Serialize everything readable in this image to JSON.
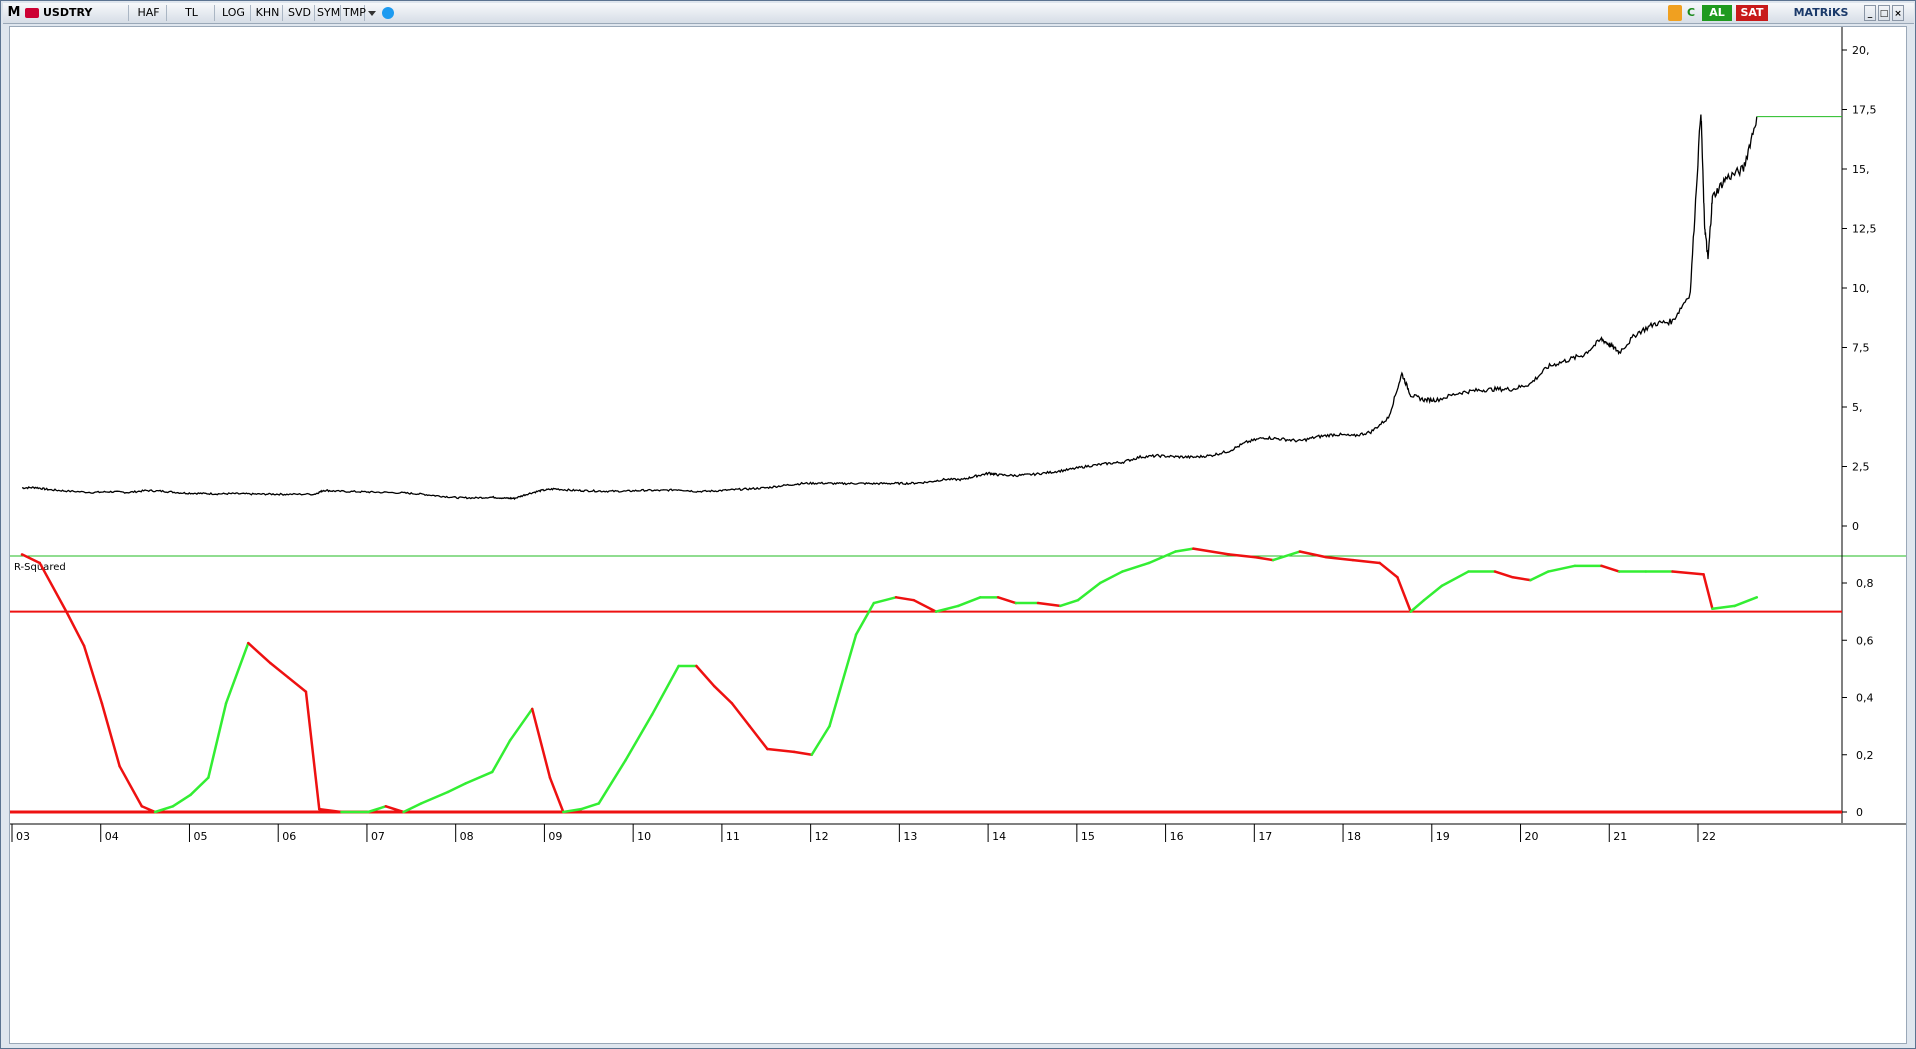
{
  "toolbar": {
    "logo": "M",
    "symbol": "USDTRY",
    "buttons": [
      "HAF",
      "TL",
      "LOG",
      "KHN",
      "SVD",
      "SYM",
      "TMP"
    ],
    "buy_label": "AL",
    "sell_label": "SAT",
    "brand": "MATRiKS"
  },
  "colors": {
    "price_line": "#000000",
    "last_price_marker": "#22bb22",
    "rsq_up": "#33ee33",
    "rsq_down": "#ee1111",
    "threshold": "#ee1111",
    "buy_bg": "#1f9a1f",
    "sell_bg": "#c81a1a"
  },
  "chart_data": [
    {
      "type": "line",
      "series": [
        {
          "values": [
            [
              2003.0,
              1.6
            ],
            [
              2003.15,
              1.62
            ],
            [
              2003.3,
              1.53
            ],
            [
              2003.5,
              1.47
            ],
            [
              2003.8,
              1.41
            ],
            [
              2004.0,
              1.44
            ],
            [
              2004.2,
              1.41
            ],
            [
              2004.4,
              1.49
            ],
            [
              2004.6,
              1.46
            ],
            [
              2004.8,
              1.39
            ],
            [
              2005.0,
              1.37
            ],
            [
              2005.2,
              1.35
            ],
            [
              2005.4,
              1.36
            ],
            [
              2005.6,
              1.34
            ],
            [
              2005.8,
              1.34
            ],
            [
              2006.0,
              1.33
            ],
            [
              2006.3,
              1.34
            ],
            [
              2006.4,
              1.5
            ],
            [
              2006.55,
              1.46
            ],
            [
              2006.8,
              1.44
            ],
            [
              2007.0,
              1.42
            ],
            [
              2007.3,
              1.39
            ],
            [
              2007.5,
              1.34
            ],
            [
              2007.7,
              1.26
            ],
            [
              2007.9,
              1.19
            ],
            [
              2008.1,
              1.18
            ],
            [
              2008.3,
              1.21
            ],
            [
              2008.45,
              1.17
            ],
            [
              2008.55,
              1.16
            ],
            [
              2008.7,
              1.35
            ],
            [
              2008.85,
              1.49
            ],
            [
              2009.0,
              1.56
            ],
            [
              2009.2,
              1.5
            ],
            [
              2009.4,
              1.48
            ],
            [
              2009.6,
              1.46
            ],
            [
              2009.8,
              1.46
            ],
            [
              2010.0,
              1.5
            ],
            [
              2010.2,
              1.49
            ],
            [
              2010.4,
              1.53
            ],
            [
              2010.6,
              1.45
            ],
            [
              2010.8,
              1.47
            ],
            [
              2011.0,
              1.52
            ],
            [
              2011.2,
              1.56
            ],
            [
              2011.4,
              1.61
            ],
            [
              2011.6,
              1.71
            ],
            [
              2011.8,
              1.79
            ],
            [
              2012.0,
              1.8
            ],
            [
              2012.2,
              1.78
            ],
            [
              2012.4,
              1.79
            ],
            [
              2012.6,
              1.78
            ],
            [
              2012.8,
              1.79
            ],
            [
              2013.0,
              1.79
            ],
            [
              2013.2,
              1.84
            ],
            [
              2013.4,
              1.96
            ],
            [
              2013.6,
              1.95
            ],
            [
              2013.75,
              2.1
            ],
            [
              2013.9,
              2.22
            ],
            [
              2014.0,
              2.15
            ],
            [
              2014.2,
              2.12
            ],
            [
              2014.4,
              2.17
            ],
            [
              2014.6,
              2.26
            ],
            [
              2014.8,
              2.37
            ],
            [
              2015.0,
              2.51
            ],
            [
              2015.2,
              2.61
            ],
            [
              2015.4,
              2.68
            ],
            [
              2015.6,
              2.9
            ],
            [
              2015.8,
              2.95
            ],
            [
              2016.0,
              2.91
            ],
            [
              2016.2,
              2.89
            ],
            [
              2016.4,
              2.96
            ],
            [
              2016.6,
              3.15
            ],
            [
              2016.8,
              3.52
            ],
            [
              2017.0,
              3.72
            ],
            [
              2017.2,
              3.65
            ],
            [
              2017.4,
              3.57
            ],
            [
              2017.6,
              3.75
            ],
            [
              2017.8,
              3.85
            ],
            [
              2018.0,
              3.78
            ],
            [
              2018.2,
              3.95
            ],
            [
              2018.4,
              4.55
            ],
            [
              2018.55,
              6.4
            ],
            [
              2018.65,
              5.5
            ],
            [
              2018.8,
              5.3
            ],
            [
              2018.95,
              5.3
            ],
            [
              2019.2,
              5.6
            ],
            [
              2019.4,
              5.7
            ],
            [
              2019.6,
              5.75
            ],
            [
              2019.8,
              5.75
            ],
            [
              2020.0,
              5.98
            ],
            [
              2020.2,
              6.7
            ],
            [
              2020.4,
              6.95
            ],
            [
              2020.6,
              7.2
            ],
            [
              2020.8,
              7.85
            ],
            [
              2020.9,
              7.6
            ],
            [
              2021.0,
              7.3
            ],
            [
              2021.2,
              8.1
            ],
            [
              2021.4,
              8.5
            ],
            [
              2021.6,
              8.6
            ],
            [
              2021.8,
              9.8
            ],
            [
              2021.92,
              17.5
            ],
            [
              2021.96,
              12.7
            ],
            [
              2022.0,
              11.2
            ],
            [
              2022.05,
              13.8
            ],
            [
              2022.2,
              14.6
            ],
            [
              2022.4,
              15.0
            ],
            [
              2022.55,
              17.2
            ]
          ]
        }
      ],
      "x_range": [
        2003,
        2024
      ],
      "y_ticks": [
        0,
        2.5,
        5,
        7.5,
        10,
        12.5,
        15,
        17.5,
        20
      ],
      "y_tick_labels": [
        "0",
        "2,5",
        "5,",
        "7,5",
        "10,",
        "12,5",
        "15,",
        "17,5",
        "20,"
      ],
      "last_value": 17.2,
      "x_tick_labels": [
        "03",
        "04",
        "05",
        "06",
        "07",
        "08",
        "09",
        "10",
        "11",
        "12",
        "13",
        "14",
        "15",
        "16",
        "17",
        "18",
        "19",
        "20",
        "21",
        "22"
      ],
      "grid": false
    },
    {
      "type": "line",
      "title": "R-Squared",
      "series": [
        {
          "values": [
            [
              2003.0,
              0.9
            ],
            [
              2003.2,
              0.87
            ],
            [
              2003.5,
              0.7
            ],
            [
              2003.7,
              0.58
            ],
            [
              2003.9,
              0.38
            ],
            [
              2004.1,
              0.16
            ],
            [
              2004.35,
              0.02
            ],
            [
              2004.5,
              0.0
            ],
            [
              2004.7,
              0.02
            ],
            [
              2004.9,
              0.06
            ],
            [
              2005.1,
              0.12
            ],
            [
              2005.3,
              0.38
            ],
            [
              2005.55,
              0.59
            ],
            [
              2005.8,
              0.52
            ],
            [
              2006.0,
              0.47
            ],
            [
              2006.2,
              0.42
            ],
            [
              2006.35,
              0.01
            ],
            [
              2006.6,
              0.0
            ],
            [
              2006.9,
              0.0
            ],
            [
              2007.1,
              0.02
            ],
            [
              2007.3,
              0.0
            ],
            [
              2007.5,
              0.03
            ],
            [
              2007.8,
              0.07
            ],
            [
              2008.0,
              0.1
            ],
            [
              2008.3,
              0.14
            ],
            [
              2008.5,
              0.25
            ],
            [
              2008.75,
              0.36
            ],
            [
              2008.95,
              0.12
            ],
            [
              2009.1,
              0.0
            ],
            [
              2009.3,
              0.01
            ],
            [
              2009.5,
              0.03
            ],
            [
              2009.8,
              0.18
            ],
            [
              2010.1,
              0.34
            ],
            [
              2010.4,
              0.51
            ],
            [
              2010.6,
              0.51
            ],
            [
              2010.8,
              0.44
            ],
            [
              2011.0,
              0.38
            ],
            [
              2011.2,
              0.3
            ],
            [
              2011.4,
              0.22
            ],
            [
              2011.7,
              0.21
            ],
            [
              2011.9,
              0.2
            ],
            [
              2012.1,
              0.3
            ],
            [
              2012.4,
              0.62
            ],
            [
              2012.6,
              0.73
            ],
            [
              2012.85,
              0.75
            ],
            [
              2013.05,
              0.74
            ],
            [
              2013.3,
              0.7
            ],
            [
              2013.55,
              0.72
            ],
            [
              2013.8,
              0.75
            ],
            [
              2014.0,
              0.75
            ],
            [
              2014.2,
              0.73
            ],
            [
              2014.45,
              0.73
            ],
            [
              2014.7,
              0.72
            ],
            [
              2014.9,
              0.74
            ],
            [
              2015.15,
              0.8
            ],
            [
              2015.4,
              0.84
            ],
            [
              2015.7,
              0.87
            ],
            [
              2016.0,
              0.91
            ],
            [
              2016.2,
              0.92
            ],
            [
              2016.6,
              0.9
            ],
            [
              2016.9,
              0.89
            ],
            [
              2017.1,
              0.88
            ],
            [
              2017.4,
              0.91
            ],
            [
              2017.7,
              0.89
            ],
            [
              2018.0,
              0.88
            ],
            [
              2018.3,
              0.87
            ],
            [
              2018.5,
              0.82
            ],
            [
              2018.65,
              0.7
            ],
            [
              2018.8,
              0.74
            ],
            [
              2019.0,
              0.79
            ],
            [
              2019.3,
              0.84
            ],
            [
              2019.6,
              0.84
            ],
            [
              2019.8,
              0.82
            ],
            [
              2020.0,
              0.81
            ],
            [
              2020.2,
              0.84
            ],
            [
              2020.5,
              0.86
            ],
            [
              2020.8,
              0.86
            ],
            [
              2021.0,
              0.84
            ],
            [
              2021.3,
              0.84
            ],
            [
              2021.6,
              0.84
            ],
            [
              2021.95,
              0.83
            ],
            [
              2022.05,
              0.71
            ],
            [
              2022.3,
              0.72
            ],
            [
              2022.55,
              0.75
            ]
          ]
        }
      ],
      "threshold": 0.7,
      "y_ticks": [
        0,
        0.2,
        0.4,
        0.6,
        0.8
      ],
      "y_tick_labels": [
        "0",
        "0,2",
        "0,4",
        "0,6",
        "0,8"
      ],
      "grid": false
    }
  ]
}
